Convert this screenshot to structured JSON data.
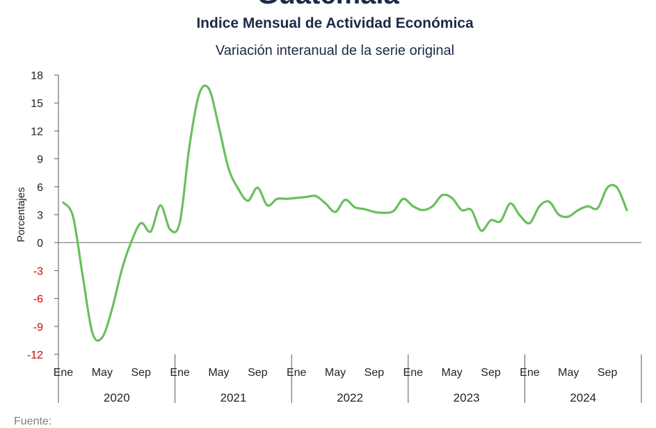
{
  "header": {
    "top_title": "Guatemala",
    "title": "Indice Mensual de  Actividad Económica",
    "subtitle": "Variación interanual de la serie original"
  },
  "footer": {
    "source": "Fuente:"
  },
  "chart_data": {
    "type": "line",
    "title": "Indice Mensual de  Actividad Económica",
    "subtitle": "Variación interanual de la serie original",
    "ylabel": "Porcentajes",
    "ylim": [
      -12,
      18
    ],
    "yticks": [
      18,
      15,
      12,
      9,
      6,
      3,
      0,
      -3,
      -6,
      -9,
      -12
    ],
    "grid": false,
    "month_tick_labels": [
      "Ene",
      "May",
      "Sep"
    ],
    "years": [
      "2020",
      "2021",
      "2022",
      "2023",
      "2024"
    ],
    "x": [
      "2020-01",
      "2020-02",
      "2020-03",
      "2020-04",
      "2020-05",
      "2020-06",
      "2020-07",
      "2020-08",
      "2020-09",
      "2020-10",
      "2020-11",
      "2020-12",
      "2021-01",
      "2021-02",
      "2021-03",
      "2021-04",
      "2021-05",
      "2021-06",
      "2021-07",
      "2021-08",
      "2021-09",
      "2021-10",
      "2021-11",
      "2021-12",
      "2022-01",
      "2022-02",
      "2022-03",
      "2022-04",
      "2022-05",
      "2022-06",
      "2022-07",
      "2022-08",
      "2022-09",
      "2022-10",
      "2022-11",
      "2022-12",
      "2023-01",
      "2023-02",
      "2023-03",
      "2023-04",
      "2023-05",
      "2023-06",
      "2023-07",
      "2023-08",
      "2023-09",
      "2023-10",
      "2023-11",
      "2023-12",
      "2024-01",
      "2024-02",
      "2024-03",
      "2024-04",
      "2024-05",
      "2024-06",
      "2024-07",
      "2024-08",
      "2024-09",
      "2024-10",
      "2024-11"
    ],
    "series": [
      {
        "name": "",
        "color": "#6abf5e",
        "values": [
          4.3,
          2.8,
          -3.6,
          -9.7,
          -10.2,
          -7.2,
          -3.0,
          0.1,
          2.1,
          1.2,
          4.0,
          1.4,
          2.2,
          10.5,
          16.0,
          16.5,
          12.5,
          8.0,
          5.8,
          4.5,
          5.9,
          4.0,
          4.7,
          4.7,
          4.8,
          4.9,
          5.0,
          4.2,
          3.3,
          4.6,
          3.8,
          3.6,
          3.3,
          3.2,
          3.4,
          4.7,
          3.9,
          3.5,
          3.9,
          5.1,
          4.8,
          3.5,
          3.5,
          1.3,
          2.4,
          2.3,
          4.2,
          2.9,
          2.1,
          3.9,
          4.4,
          3.0,
          2.8,
          3.5,
          3.9,
          3.7,
          5.9,
          5.9,
          3.5
        ]
      }
    ]
  }
}
